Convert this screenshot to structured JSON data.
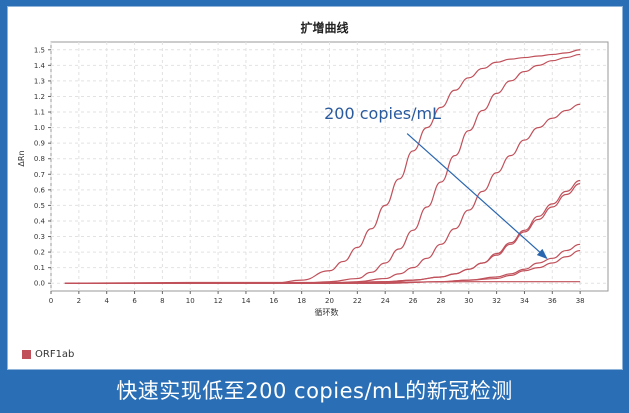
{
  "caption": "快速实现低至200 copies/mL的新冠检测",
  "chart_data": {
    "type": "line",
    "title": "扩增曲线",
    "xlabel": "循环数",
    "ylabel": "ΔRn",
    "xlim": [
      0,
      40
    ],
    "ylim": [
      -0.05,
      1.55
    ],
    "grid": true,
    "x_ticks": [
      0,
      2,
      4,
      6,
      8,
      10,
      12,
      14,
      16,
      18,
      20,
      22,
      24,
      26,
      28,
      30,
      32,
      34,
      36,
      38
    ],
    "y_ticks": [
      0.0,
      0.1,
      0.2,
      0.3,
      0.4,
      0.5,
      0.6,
      0.7,
      0.8,
      0.9,
      1.0,
      1.1,
      1.2,
      1.3,
      1.4,
      1.5
    ],
    "legend": [
      "ORF1ab"
    ],
    "legend_position": "bottom-left",
    "series_color": "#c0505a",
    "series": [
      {
        "x": [
          1,
          16,
          18,
          20,
          21,
          22,
          23,
          24,
          25,
          26,
          27,
          28,
          29,
          30,
          31,
          32,
          33,
          34,
          35,
          36,
          37,
          38
        ],
        "values": [
          0,
          0,
          0.02,
          0.08,
          0.14,
          0.23,
          0.35,
          0.5,
          0.67,
          0.85,
          1.0,
          1.13,
          1.24,
          1.32,
          1.38,
          1.42,
          1.44,
          1.45,
          1.46,
          1.47,
          1.48,
          1.5
        ]
      },
      {
        "x": [
          1,
          18,
          20,
          22,
          23,
          24,
          25,
          26,
          27,
          28,
          29,
          30,
          31,
          32,
          33,
          34,
          35,
          36,
          37,
          38
        ],
        "values": [
          0,
          0,
          0.01,
          0.03,
          0.07,
          0.13,
          0.22,
          0.34,
          0.49,
          0.65,
          0.82,
          0.98,
          1.11,
          1.22,
          1.3,
          1.36,
          1.4,
          1.43,
          1.45,
          1.47
        ]
      },
      {
        "x": [
          1,
          20,
          22,
          24,
          25,
          26,
          27,
          28,
          29,
          30,
          31,
          32,
          33,
          34,
          35,
          36,
          37,
          38
        ],
        "values": [
          0,
          0,
          0.01,
          0.03,
          0.06,
          0.1,
          0.16,
          0.25,
          0.35,
          0.47,
          0.59,
          0.71,
          0.82,
          0.92,
          1.0,
          1.06,
          1.11,
          1.15
        ]
      },
      {
        "x": [
          1,
          20,
          24,
          26,
          28,
          29,
          30,
          31,
          32,
          33,
          34,
          35,
          36,
          37,
          38
        ],
        "values": [
          0,
          0,
          0.01,
          0.02,
          0.04,
          0.06,
          0.09,
          0.13,
          0.19,
          0.26,
          0.34,
          0.43,
          0.51,
          0.59,
          0.66
        ]
      },
      {
        "x": [
          1,
          20,
          24,
          26,
          28,
          29,
          30,
          31,
          32,
          33,
          34,
          35,
          36,
          37,
          38
        ],
        "values": [
          0,
          0,
          0.01,
          0.02,
          0.04,
          0.06,
          0.09,
          0.13,
          0.18,
          0.25,
          0.33,
          0.41,
          0.49,
          0.57,
          0.64
        ]
      },
      {
        "x": [
          1,
          24,
          28,
          30,
          32,
          33,
          34,
          35,
          36,
          37,
          38
        ],
        "values": [
          0,
          0,
          0.01,
          0.02,
          0.04,
          0.06,
          0.09,
          0.13,
          0.16,
          0.21,
          0.25
        ]
      },
      {
        "x": [
          1,
          24,
          28,
          30,
          32,
          33,
          34,
          35,
          36,
          37,
          38
        ],
        "values": [
          0,
          0,
          0.01,
          0.02,
          0.03,
          0.05,
          0.08,
          0.1,
          0.13,
          0.17,
          0.21
        ]
      },
      {
        "x": [
          1,
          10,
          20,
          30,
          38
        ],
        "values": [
          0,
          0.005,
          0.005,
          0.01,
          0.01
        ]
      }
    ],
    "annotation": {
      "text": "200 copies/mL",
      "arrow_from": [
        25,
        1.0
      ],
      "arrow_to": [
        35.6,
        0.16
      ]
    }
  }
}
